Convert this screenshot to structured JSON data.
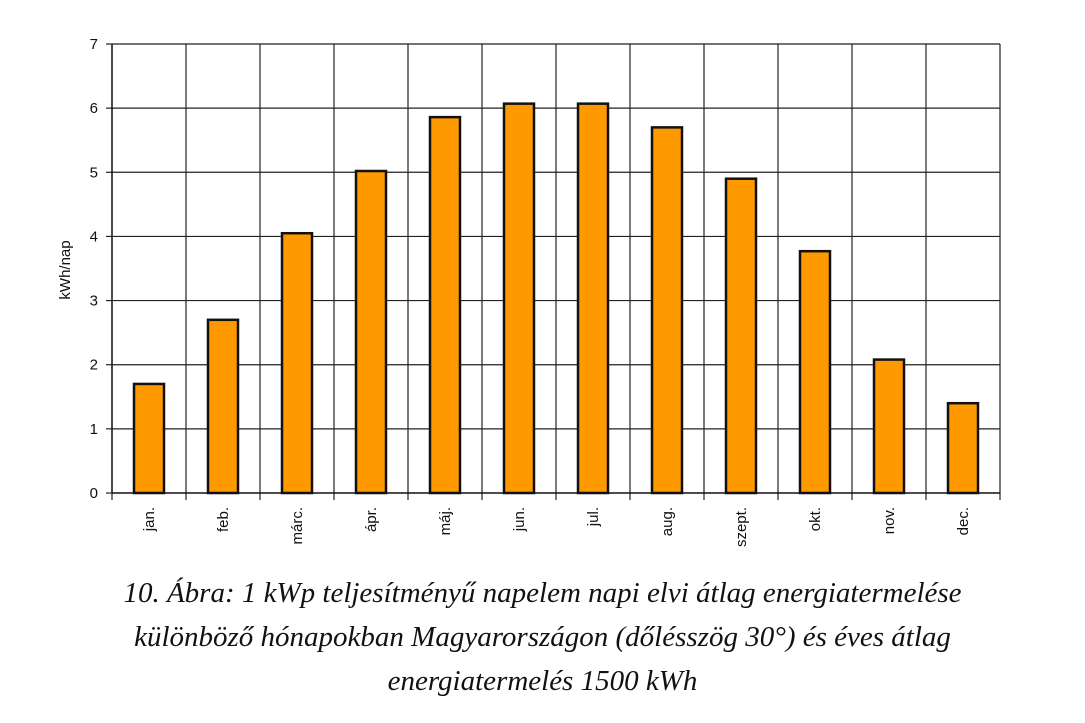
{
  "chart_data": {
    "type": "bar",
    "categories": [
      "jan.",
      "feb.",
      "márc.",
      "ápr.",
      "máj.",
      "jun.",
      "jul.",
      "aug.",
      "szept.",
      "okt.",
      "nov.",
      "dec."
    ],
    "values": [
      1.7,
      2.7,
      4.05,
      5.02,
      5.86,
      6.07,
      6.07,
      5.7,
      4.9,
      3.77,
      2.08,
      1.4
    ],
    "ylabel": "kWh/nap",
    "xlabel": "",
    "ylim": [
      0,
      7
    ],
    "yticks": [
      0,
      1,
      2,
      3,
      4,
      5,
      6,
      7
    ],
    "grid": true,
    "bar_color": "#ff9900",
    "bar_edge_color": "#111111"
  },
  "caption": {
    "line1": "10. Ábra: 1 kWp teljesítményű napelem napi elvi átlag energiatermelése",
    "line2": "különböző hónapokban Magyarországon (dőlésszög 30°) és éves átlag",
    "line3": "energiatermelés 1500 kWh"
  }
}
